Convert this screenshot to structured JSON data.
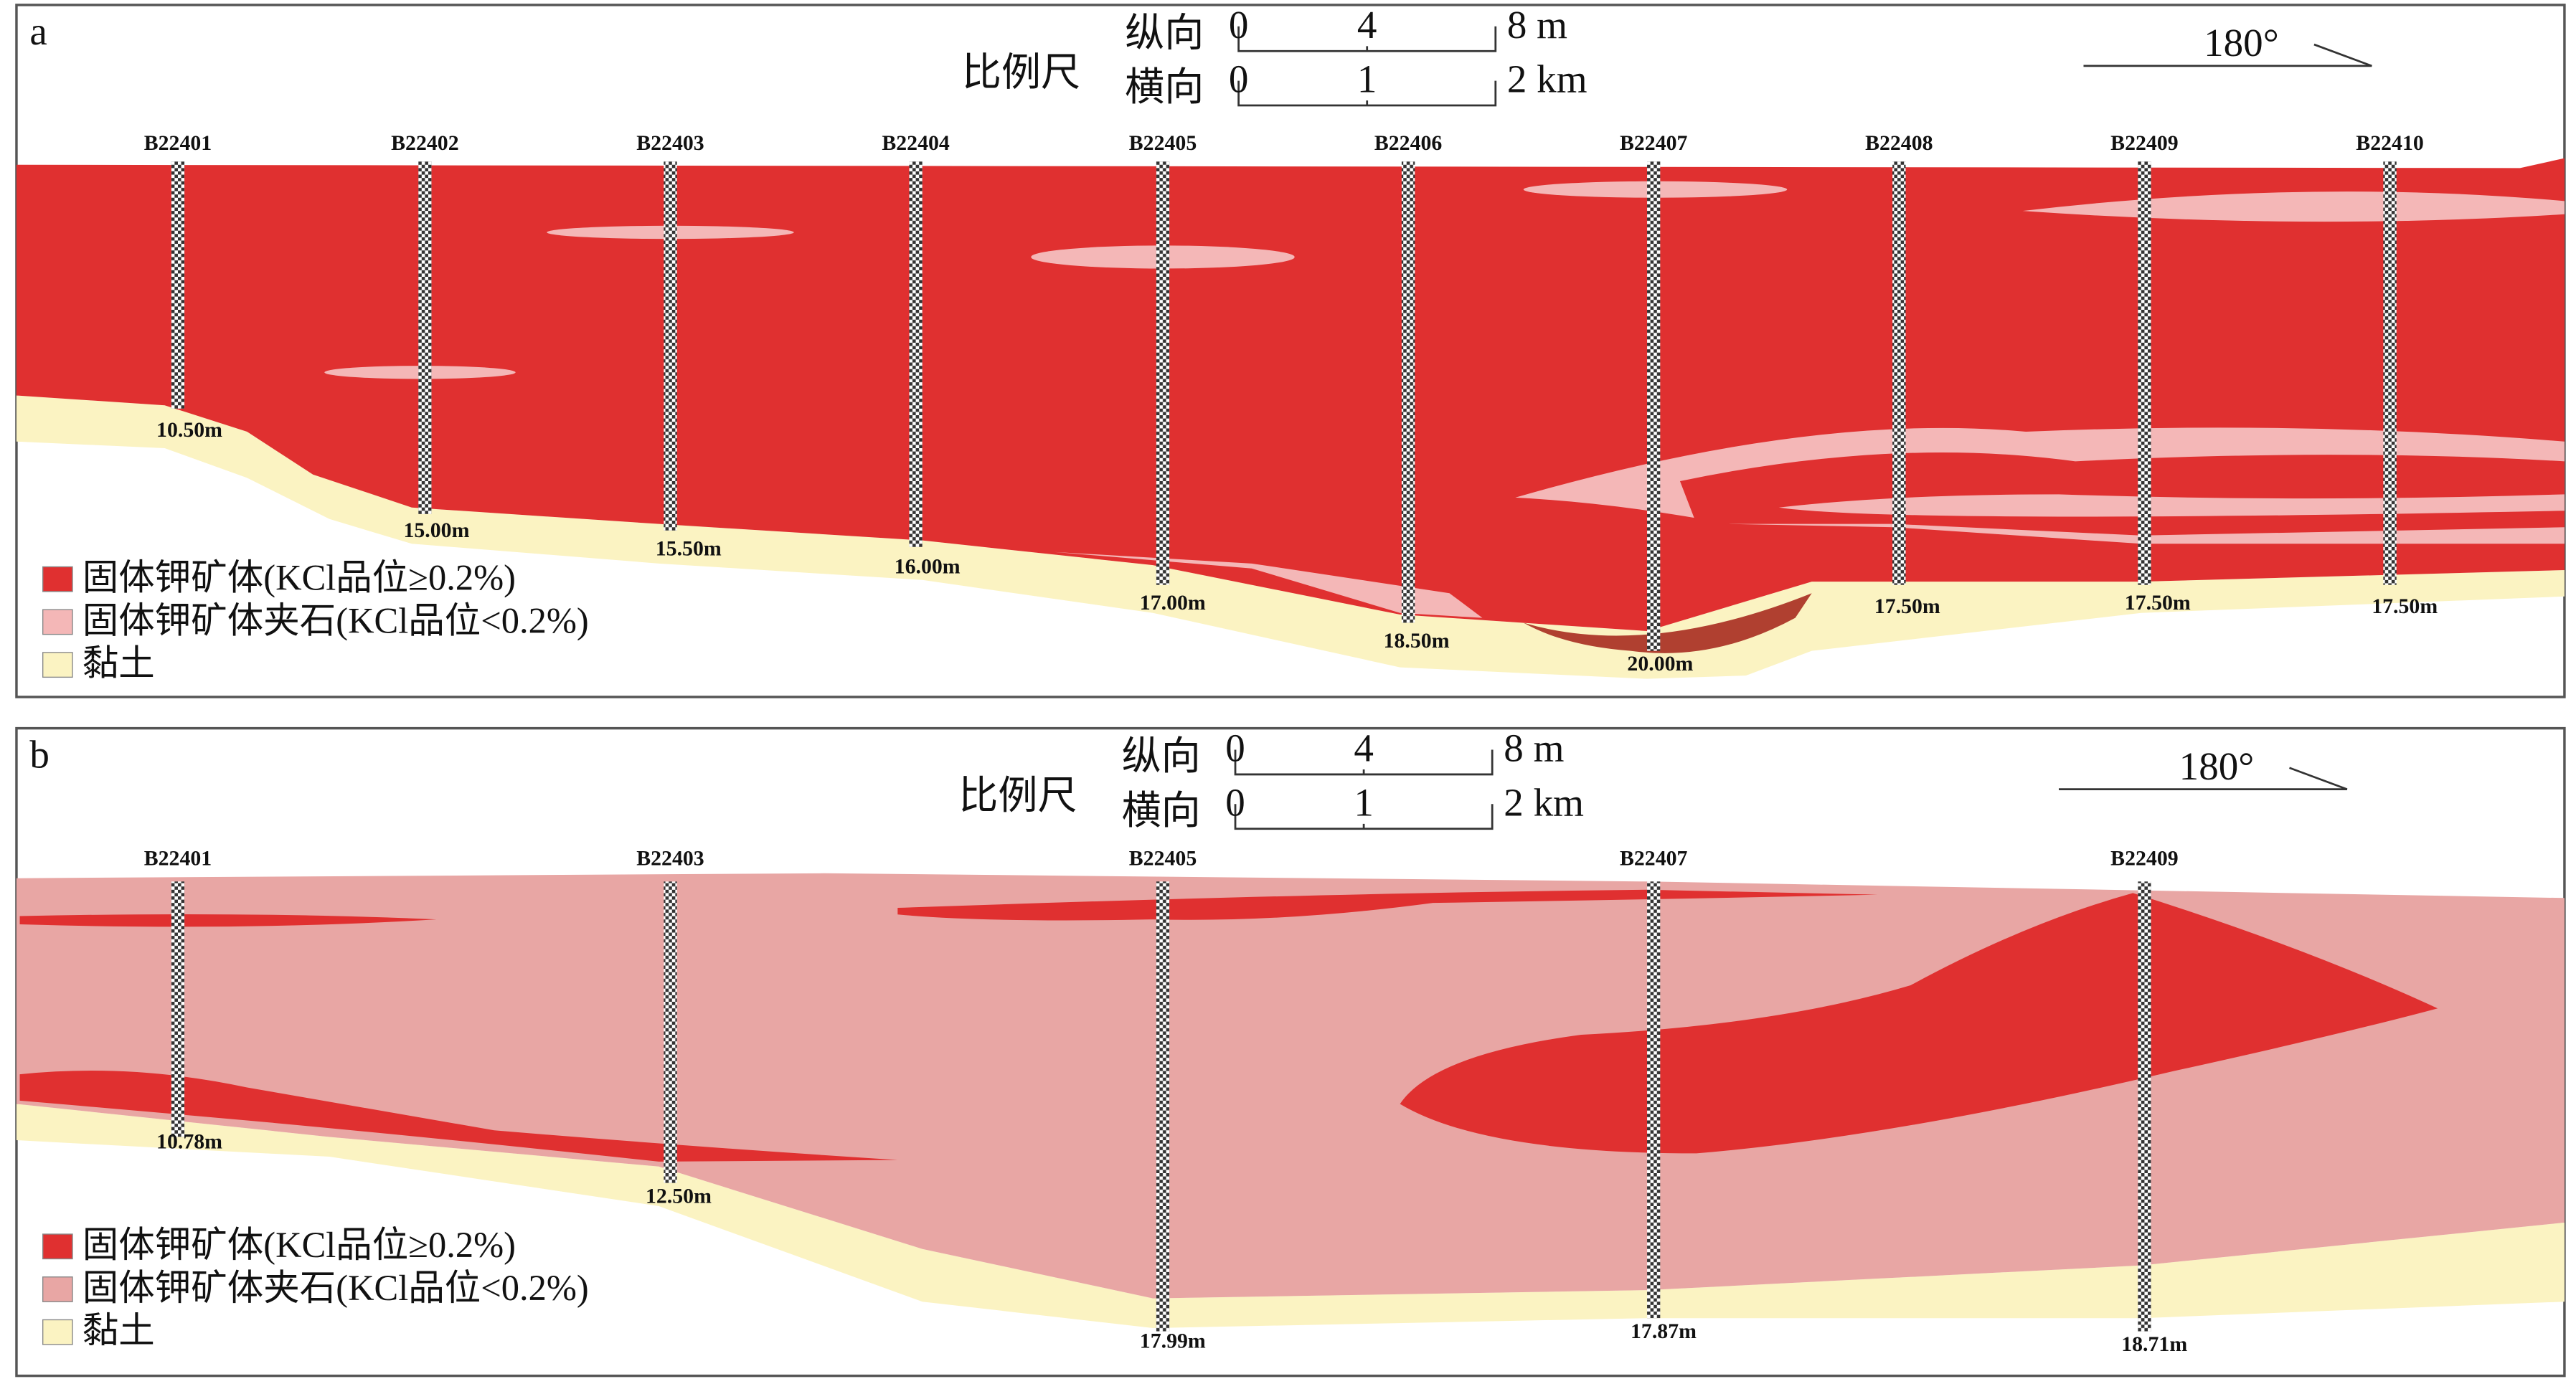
{
  "panels": [
    {
      "label": "a",
      "scale": {
        "title": "比例尺",
        "vertical": {
          "label": "纵向",
          "ticks": [
            "0",
            "4",
            "8 m"
          ]
        },
        "horizontal": {
          "label": "横向",
          "ticks": [
            "0",
            "1",
            "2 km"
          ]
        }
      },
      "direction": "180°",
      "wells": [
        {
          "name": "B22401",
          "depth": "10.50m"
        },
        {
          "name": "B22402",
          "depth": "15.00m"
        },
        {
          "name": "B22403",
          "depth": "15.50m"
        },
        {
          "name": "B22404",
          "depth": "16.00m"
        },
        {
          "name": "B22405",
          "depth": "17.00m"
        },
        {
          "name": "B22406",
          "depth": "18.50m"
        },
        {
          "name": "B22407",
          "depth": "20.00m"
        },
        {
          "name": "B22408",
          "depth": "17.50m"
        },
        {
          "name": "B22409",
          "depth": "17.50m"
        },
        {
          "name": "B22410",
          "depth": "17.50m"
        }
      ],
      "legend": [
        "固体钾矿体(KCl品位≥0.2%)",
        "固体钾矿体夹石(KCl品位<0.2%)",
        "黏土"
      ]
    },
    {
      "label": "b",
      "scale": {
        "title": "比例尺",
        "vertical": {
          "label": "纵向",
          "ticks": [
            "0",
            "4",
            "8 m"
          ]
        },
        "horizontal": {
          "label": "横向",
          "ticks": [
            "0",
            "1",
            "2 km"
          ]
        }
      },
      "direction": "180°",
      "wells": [
        {
          "name": "B22401",
          "depth": "10.78m"
        },
        {
          "name": "B22403",
          "depth": "12.50m"
        },
        {
          "name": "B22405",
          "depth": "17.99m"
        },
        {
          "name": "B22407",
          "depth": "17.87m"
        },
        {
          "name": "B22409",
          "depth": "18.71m"
        }
      ],
      "legend": [
        "固体钾矿体(KCl品位≥0.2%)",
        "固体钾矿体夹石(KCl品位<0.2%)",
        "黏土"
      ]
    }
  ]
}
